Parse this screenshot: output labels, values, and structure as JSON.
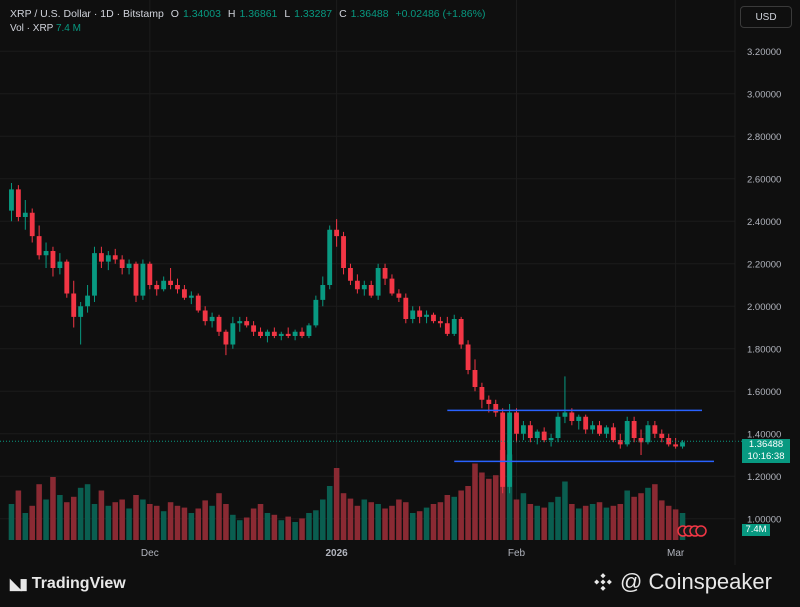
{
  "header": {
    "symbol": "XRP / U.S. Dollar · 1D · Bitstamp",
    "open_label": "O",
    "open_value": "1.34003",
    "high_label": "H",
    "high_value": "1.36861",
    "low_label": "L",
    "low_value": "1.33287",
    "close_label": "C",
    "close_value": "1.36488",
    "change": "+0.02486 (+1.86%)",
    "volume_label": "Vol · XRP",
    "volume_value": "7.4 M"
  },
  "currency_button": "USD",
  "last_price": "1.36488",
  "countdown": "10:16:38",
  "volume_tag": "7.4M",
  "watermarks": {
    "left": "TradingView",
    "right": "@ Coinspeaker"
  },
  "colors": {
    "up": "#089981",
    "down": "#f23645",
    "bg": "#0f0f0f",
    "line": "#2962ff"
  },
  "chart_data": {
    "type": "candlestick",
    "y_axis": {
      "ticks": [
        "3.20000",
        "3.00000",
        "2.80000",
        "2.60000",
        "2.40000",
        "2.20000",
        "2.00000",
        "1.80000",
        "1.60000",
        "1.40000",
        "1.20000",
        "1.00000"
      ],
      "range": [
        0.9,
        3.3
      ]
    },
    "x_axis": {
      "ticks": [
        "Dec",
        "2026",
        "Feb",
        "Mar"
      ]
    },
    "ohlc": [
      [
        2.45,
        2.58,
        2.4,
        2.55
      ],
      [
        2.55,
        2.57,
        2.4,
        2.42
      ],
      [
        2.42,
        2.5,
        2.36,
        2.44
      ],
      [
        2.44,
        2.46,
        2.3,
        2.33
      ],
      [
        2.33,
        2.38,
        2.22,
        2.24
      ],
      [
        2.24,
        2.3,
        2.18,
        2.26
      ],
      [
        2.26,
        2.28,
        2.14,
        2.18
      ],
      [
        2.18,
        2.25,
        2.15,
        2.21
      ],
      [
        2.21,
        2.22,
        2.04,
        2.06
      ],
      [
        2.06,
        2.12,
        1.9,
        1.95
      ],
      [
        1.95,
        2.02,
        1.82,
        2.0
      ],
      [
        2.0,
        2.1,
        1.97,
        2.05
      ],
      [
        2.05,
        2.28,
        2.02,
        2.25
      ],
      [
        2.25,
        2.28,
        2.18,
        2.21
      ],
      [
        2.21,
        2.26,
        2.17,
        2.24
      ],
      [
        2.24,
        2.27,
        2.2,
        2.22
      ],
      [
        2.22,
        2.24,
        2.15,
        2.18
      ],
      [
        2.18,
        2.22,
        2.15,
        2.2
      ],
      [
        2.2,
        2.21,
        2.02,
        2.05
      ],
      [
        2.05,
        2.22,
        2.03,
        2.2
      ],
      [
        2.2,
        2.21,
        2.08,
        2.1
      ],
      [
        2.1,
        2.12,
        2.05,
        2.08
      ],
      [
        2.08,
        2.14,
        2.07,
        2.12
      ],
      [
        2.12,
        2.18,
        2.08,
        2.1
      ],
      [
        2.1,
        2.13,
        2.06,
        2.08
      ],
      [
        2.08,
        2.1,
        2.03,
        2.04
      ],
      [
        2.04,
        2.07,
        2.01,
        2.05
      ],
      [
        2.05,
        2.06,
        1.97,
        1.98
      ],
      [
        1.98,
        2.0,
        1.91,
        1.93
      ],
      [
        1.93,
        1.97,
        1.9,
        1.95
      ],
      [
        1.95,
        1.96,
        1.86,
        1.88
      ],
      [
        1.88,
        1.89,
        1.77,
        1.82
      ],
      [
        1.82,
        1.95,
        1.8,
        1.92
      ],
      [
        1.92,
        1.95,
        1.88,
        1.93
      ],
      [
        1.93,
        1.95,
        1.9,
        1.91
      ],
      [
        1.91,
        1.93,
        1.86,
        1.88
      ],
      [
        1.88,
        1.9,
        1.85,
        1.86
      ],
      [
        1.86,
        1.89,
        1.83,
        1.88
      ],
      [
        1.88,
        1.9,
        1.85,
        1.86
      ],
      [
        1.86,
        1.88,
        1.84,
        1.87
      ],
      [
        1.87,
        1.9,
        1.85,
        1.86
      ],
      [
        1.86,
        1.89,
        1.84,
        1.88
      ],
      [
        1.88,
        1.9,
        1.85,
        1.86
      ],
      [
        1.86,
        1.92,
        1.85,
        1.91
      ],
      [
        1.91,
        2.05,
        1.9,
        2.03
      ],
      [
        2.03,
        2.14,
        2.0,
        2.1
      ],
      [
        2.1,
        2.38,
        2.08,
        2.36
      ],
      [
        2.36,
        2.41,
        2.28,
        2.33
      ],
      [
        2.33,
        2.35,
        2.15,
        2.18
      ],
      [
        2.18,
        2.2,
        2.1,
        2.12
      ],
      [
        2.12,
        2.15,
        2.06,
        2.08
      ],
      [
        2.08,
        2.12,
        2.05,
        2.1
      ],
      [
        2.1,
        2.12,
        2.04,
        2.05
      ],
      [
        2.05,
        2.2,
        2.03,
        2.18
      ],
      [
        2.18,
        2.2,
        2.1,
        2.13
      ],
      [
        2.13,
        2.15,
        2.05,
        2.06
      ],
      [
        2.06,
        2.08,
        2.02,
        2.04
      ],
      [
        2.04,
        2.06,
        1.92,
        1.94
      ],
      [
        1.94,
        2.0,
        1.92,
        1.98
      ],
      [
        1.98,
        2.0,
        1.92,
        1.95
      ],
      [
        1.95,
        1.98,
        1.92,
        1.96
      ],
      [
        1.96,
        1.97,
        1.92,
        1.93
      ],
      [
        1.93,
        1.95,
        1.9,
        1.92
      ],
      [
        1.92,
        1.95,
        1.86,
        1.87
      ],
      [
        1.87,
        1.96,
        1.86,
        1.94
      ],
      [
        1.94,
        1.95,
        1.8,
        1.82
      ],
      [
        1.82,
        1.84,
        1.68,
        1.7
      ],
      [
        1.7,
        1.75,
        1.6,
        1.62
      ],
      [
        1.62,
        1.64,
        1.52,
        1.56
      ],
      [
        1.56,
        1.58,
        1.5,
        1.54
      ],
      [
        1.54,
        1.56,
        1.48,
        1.5
      ],
      [
        1.5,
        1.52,
        1.12,
        1.15
      ],
      [
        1.15,
        1.54,
        1.12,
        1.5
      ],
      [
        1.5,
        1.52,
        1.36,
        1.4
      ],
      [
        1.4,
        1.46,
        1.37,
        1.44
      ],
      [
        1.44,
        1.46,
        1.36,
        1.38
      ],
      [
        1.38,
        1.42,
        1.35,
        1.41
      ],
      [
        1.41,
        1.43,
        1.36,
        1.37
      ],
      [
        1.37,
        1.4,
        1.34,
        1.38
      ],
      [
        1.38,
        1.5,
        1.36,
        1.48
      ],
      [
        1.48,
        1.67,
        1.45,
        1.5
      ],
      [
        1.5,
        1.52,
        1.44,
        1.46
      ],
      [
        1.46,
        1.49,
        1.42,
        1.48
      ],
      [
        1.48,
        1.49,
        1.4,
        1.42
      ],
      [
        1.42,
        1.46,
        1.4,
        1.44
      ],
      [
        1.44,
        1.46,
        1.39,
        1.4
      ],
      [
        1.4,
        1.44,
        1.38,
        1.43
      ],
      [
        1.43,
        1.45,
        1.36,
        1.37
      ],
      [
        1.37,
        1.4,
        1.33,
        1.35
      ],
      [
        1.35,
        1.48,
        1.34,
        1.46
      ],
      [
        1.46,
        1.48,
        1.36,
        1.38
      ],
      [
        1.38,
        1.42,
        1.3,
        1.36
      ],
      [
        1.36,
        1.46,
        1.35,
        1.44
      ],
      [
        1.44,
        1.46,
        1.38,
        1.4
      ],
      [
        1.4,
        1.42,
        1.36,
        1.38
      ],
      [
        1.38,
        1.4,
        1.34,
        1.35
      ],
      [
        1.35,
        1.38,
        1.33,
        1.34
      ],
      [
        1.34,
        1.37,
        1.33,
        1.36
      ]
    ],
    "volume": [
      40,
      55,
      30,
      38,
      62,
      45,
      70,
      50,
      42,
      48,
      58,
      62,
      40,
      55,
      38,
      42,
      45,
      35,
      50,
      45,
      40,
      38,
      32,
      42,
      38,
      36,
      30,
      35,
      44,
      38,
      52,
      40,
      28,
      22,
      25,
      35,
      40,
      30,
      28,
      22,
      26,
      20,
      24,
      30,
      33,
      45,
      60,
      80,
      52,
      46,
      38,
      45,
      42,
      40,
      35,
      38,
      45,
      42,
      30,
      32,
      36,
      40,
      42,
      50,
      48,
      55,
      60,
      85,
      75,
      68,
      72,
      100,
      95,
      45,
      52,
      40,
      38,
      36,
      42,
      48,
      65,
      40,
      35,
      38,
      40,
      42,
      36,
      38,
      40,
      55,
      48,
      52,
      58,
      62,
      44,
      38,
      34,
      30
    ]
  }
}
